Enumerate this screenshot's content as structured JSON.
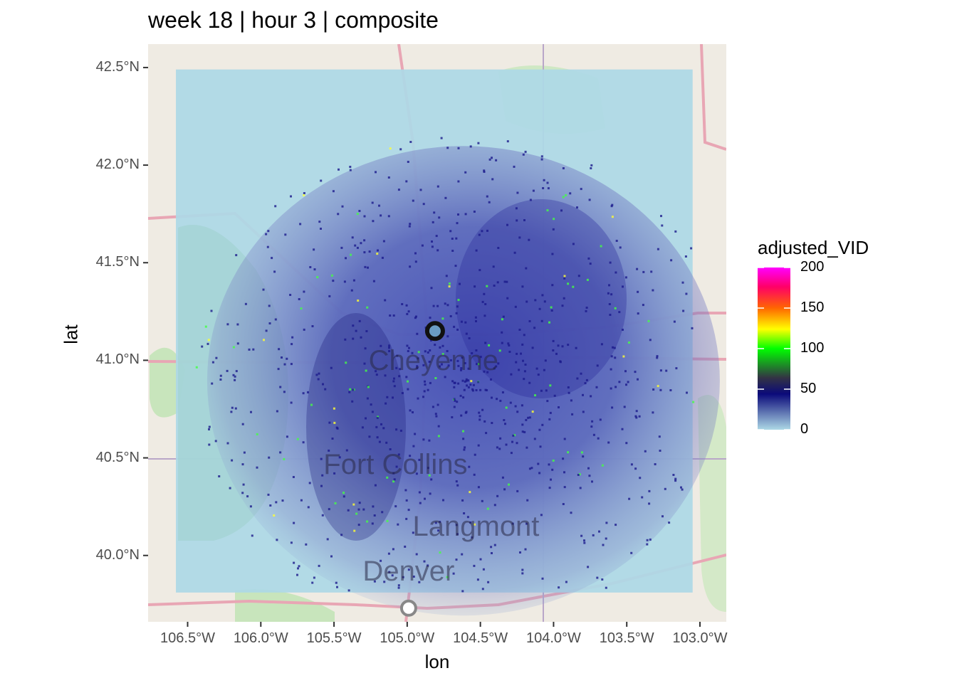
{
  "title": "week 18 | hour 3 | composite",
  "axes": {
    "xlabel": "lon",
    "ylabel": "lat",
    "x_ticks": [
      {
        "value": -106.5,
        "label": "106.5°W"
      },
      {
        "value": -106.0,
        "label": "106.0°W"
      },
      {
        "value": -105.5,
        "label": "105.5°W"
      },
      {
        "value": -105.0,
        "label": "105.0°W"
      },
      {
        "value": -104.5,
        "label": "104.5°W"
      },
      {
        "value": -104.0,
        "label": "104.0°W"
      },
      {
        "value": -103.5,
        "label": "103.5°W"
      },
      {
        "value": -103.0,
        "label": "103.0°W"
      }
    ],
    "y_ticks": [
      {
        "value": 42.5,
        "label": "42.5°N"
      },
      {
        "value": 42.0,
        "label": "42.0°N"
      },
      {
        "value": 41.5,
        "label": "41.5°N"
      },
      {
        "value": 41.0,
        "label": "41.0°N"
      },
      {
        "value": 40.5,
        "label": "40.5°N"
      },
      {
        "value": 40.0,
        "label": "40.0°N"
      }
    ],
    "xlim": [
      -106.77,
      -102.82
    ],
    "ylim": [
      39.66,
      42.62
    ]
  },
  "map": {
    "cities": [
      {
        "name": "Cheyenne",
        "lon": -104.82,
        "lat": 40.99
      },
      {
        "name": "Fort Collins",
        "lon": -105.08,
        "lat": 40.46
      },
      {
        "name": "Langmont",
        "lon": -104.53,
        "lat": 40.14
      },
      {
        "name": "Denver",
        "lon": -104.99,
        "lat": 39.91
      }
    ],
    "radar_site": {
      "lon": -104.81,
      "lat": 41.15
    },
    "radar_domain": {
      "lon_min": -106.58,
      "lon_max": -103.05,
      "lat_min": 39.81,
      "lat_max": 42.49
    }
  },
  "legend": {
    "title": "adjusted_VID",
    "breaks": [
      {
        "value": 200,
        "label": "200"
      },
      {
        "value": 150,
        "label": "150"
      },
      {
        "value": 100,
        "label": "100"
      },
      {
        "value": 50,
        "label": "50"
      },
      {
        "value": 0,
        "label": "0"
      }
    ],
    "range": [
      0,
      200
    ],
    "colors": [
      "#add8e6",
      "#0b0a7a",
      "#00ff00",
      "#ffff00",
      "#ff6600",
      "#ff0066",
      "#ff00ff"
    ]
  }
}
